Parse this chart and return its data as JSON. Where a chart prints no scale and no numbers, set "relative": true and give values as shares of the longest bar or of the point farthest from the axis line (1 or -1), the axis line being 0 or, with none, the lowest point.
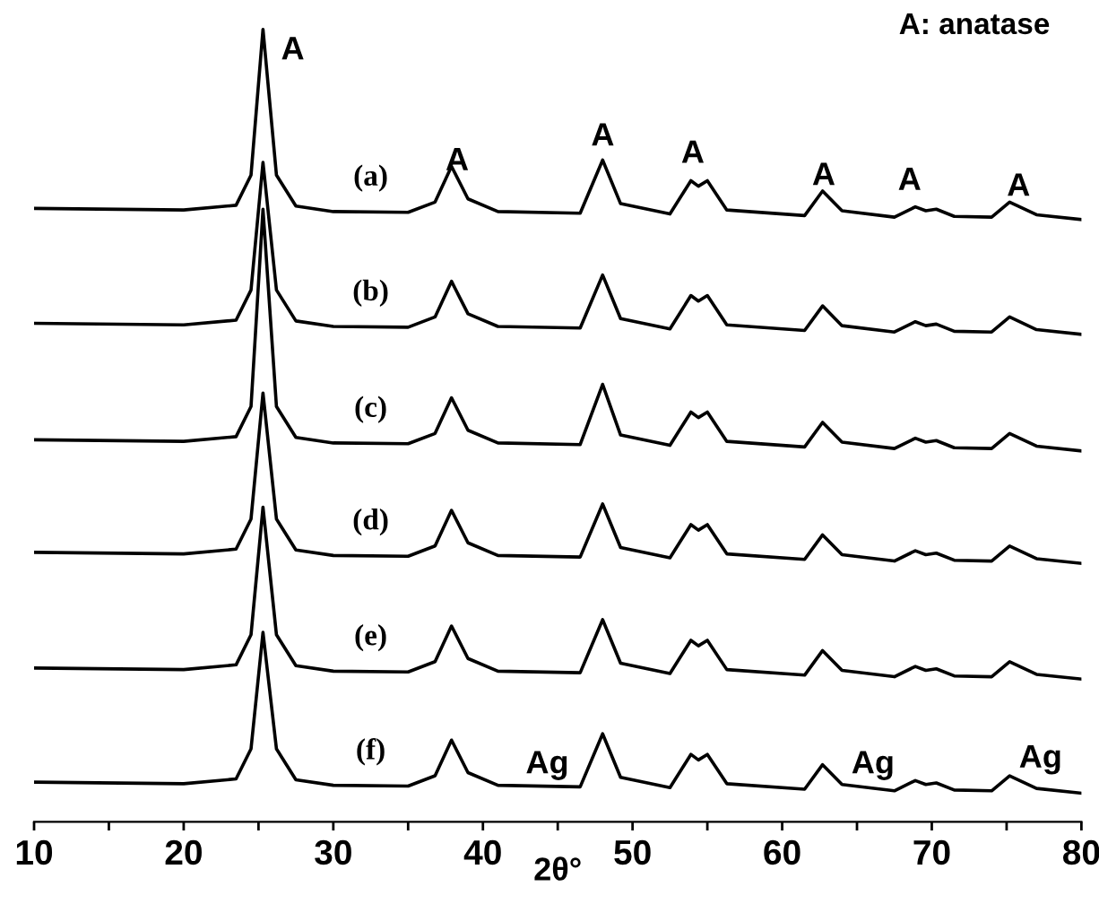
{
  "chart_data": {
    "type": "line",
    "relative": true,
    "xlabel": "2θ°",
    "grid": false,
    "legend": false,
    "marker": "none",
    "line_style": "solid",
    "xlim": [
      10,
      80
    ],
    "xticks": [
      10,
      {
        "value": 15,
        "label": null
      },
      20,
      {
        "value": 25,
        "label": null
      },
      30,
      {
        "value": 35,
        "label": null
      },
      40,
      {
        "value": 45,
        "label": null
      },
      50,
      {
        "value": 55,
        "label": null
      },
      60,
      {
        "value": 65,
        "label": null
      },
      70,
      {
        "value": 75,
        "label": null
      },
      80
    ],
    "x": [
      10,
      20,
      23.5,
      24.5,
      25.3,
      26.2,
      27.5,
      30,
      35,
      36.8,
      37.9,
      39,
      41,
      46.5,
      48,
      49.2,
      52.5,
      53.9,
      54.4,
      55,
      56.3,
      61.5,
      62.7,
      64,
      67.5,
      68.9,
      69.6,
      70.3,
      71.5,
      74,
      75.2,
      77,
      80
    ],
    "series": [
      {
        "name": "(a)",
        "color": "#000000",
        "values": [
          0.774,
          0.772,
          0.778,
          0.816,
          1.0,
          0.816,
          0.777,
          0.77,
          0.769,
          0.782,
          0.827,
          0.786,
          0.77,
          0.768,
          0.835,
          0.78,
          0.767,
          0.809,
          0.802,
          0.809,
          0.772,
          0.765,
          0.796,
          0.771,
          0.763,
          0.776,
          0.771,
          0.773,
          0.764,
          0.763,
          0.782,
          0.766,
          0.76
        ]
      },
      {
        "name": "(b)",
        "color": "#000000",
        "values": [
          0.629,
          0.627,
          0.633,
          0.671,
          0.832,
          0.671,
          0.632,
          0.625,
          0.624,
          0.637,
          0.682,
          0.641,
          0.625,
          0.623,
          0.69,
          0.635,
          0.622,
          0.664,
          0.657,
          0.664,
          0.627,
          0.62,
          0.651,
          0.626,
          0.618,
          0.631,
          0.626,
          0.628,
          0.619,
          0.618,
          0.637,
          0.621,
          0.615
        ]
      },
      {
        "name": "(c)",
        "color": "#000000",
        "values": [
          0.482,
          0.48,
          0.486,
          0.524,
          0.773,
          0.524,
          0.485,
          0.478,
          0.477,
          0.49,
          0.535,
          0.494,
          0.478,
          0.476,
          0.552,
          0.488,
          0.475,
          0.517,
          0.51,
          0.517,
          0.48,
          0.473,
          0.504,
          0.479,
          0.471,
          0.484,
          0.479,
          0.481,
          0.472,
          0.471,
          0.49,
          0.474,
          0.468
        ]
      },
      {
        "name": "(d)",
        "color": "#000000",
        "values": [
          0.34,
          0.338,
          0.344,
          0.382,
          0.541,
          0.382,
          0.343,
          0.336,
          0.335,
          0.348,
          0.393,
          0.352,
          0.336,
          0.334,
          0.401,
          0.346,
          0.333,
          0.375,
          0.368,
          0.375,
          0.338,
          0.331,
          0.362,
          0.337,
          0.329,
          0.342,
          0.337,
          0.339,
          0.33,
          0.329,
          0.348,
          0.332,
          0.326
        ]
      },
      {
        "name": "(e)",
        "color": "#000000",
        "values": [
          0.194,
          0.192,
          0.198,
          0.236,
          0.397,
          0.236,
          0.197,
          0.19,
          0.189,
          0.202,
          0.247,
          0.206,
          0.19,
          0.188,
          0.255,
          0.2,
          0.187,
          0.229,
          0.222,
          0.229,
          0.192,
          0.185,
          0.216,
          0.191,
          0.183,
          0.196,
          0.191,
          0.193,
          0.184,
          0.183,
          0.202,
          0.186,
          0.18
        ]
      },
      {
        "name": "(f)",
        "color": "#000000",
        "values": [
          0.05,
          0.048,
          0.054,
          0.092,
          0.239,
          0.092,
          0.053,
          0.046,
          0.045,
          0.058,
          0.103,
          0.062,
          0.046,
          0.044,
          0.111,
          0.056,
          0.043,
          0.085,
          0.078,
          0.085,
          0.048,
          0.041,
          0.072,
          0.047,
          0.039,
          0.052,
          0.047,
          0.049,
          0.04,
          0.039,
          0.058,
          0.042,
          0.036
        ]
      }
    ],
    "annotations": [
      "A: anatase",
      "A",
      "A",
      "A",
      "A",
      "A",
      "A",
      "A",
      "Ag",
      "Ag",
      "Ag"
    ]
  }
}
